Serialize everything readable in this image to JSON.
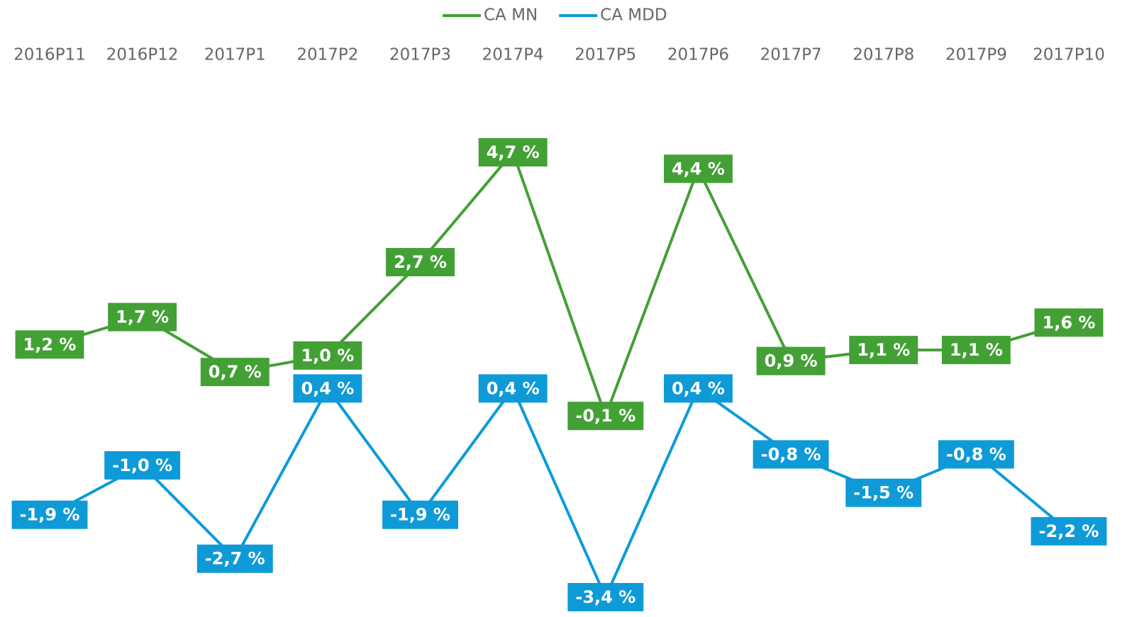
{
  "chart_data": {
    "type": "line",
    "categories": [
      "2016P11",
      "2016P12",
      "2017P1",
      "2017P2",
      "2017P3",
      "2017P4",
      "2017P5",
      "2017P6",
      "2017P7",
      "2017P8",
      "2017P9",
      "2017P10"
    ],
    "series": [
      {
        "name": "CA MN",
        "color": "#43a035",
        "values": [
          1.2,
          1.7,
          0.7,
          1.0,
          2.7,
          4.7,
          -0.1,
          4.4,
          0.9,
          1.1,
          1.1,
          1.6
        ],
        "value_labels": [
          "1,2 %",
          "1,7 %",
          "0,7 %",
          "1,0 %",
          "2,7 %",
          "4,7 %",
          "-0,1 %",
          "4,4 %",
          "0,9 %",
          "1,1 %",
          "1,1 %",
          "1,6 %"
        ]
      },
      {
        "name": "CA MDD",
        "color": "#0e9ad7",
        "values": [
          -1.9,
          -1.0,
          -2.7,
          0.4,
          -1.9,
          0.4,
          -3.4,
          0.4,
          -0.8,
          -1.5,
          -0.8,
          -2.2
        ],
        "value_labels": [
          "-1,9 %",
          "-1,0 %",
          "-2,7 %",
          "0,4 %",
          "-1,9 %",
          "0,4 %",
          "-3,4 %",
          "0,4 %",
          "-0,8 %",
          "-1,5 %",
          "-0,8 %",
          "-2,2 %"
        ]
      }
    ],
    "legend": "top"
  }
}
